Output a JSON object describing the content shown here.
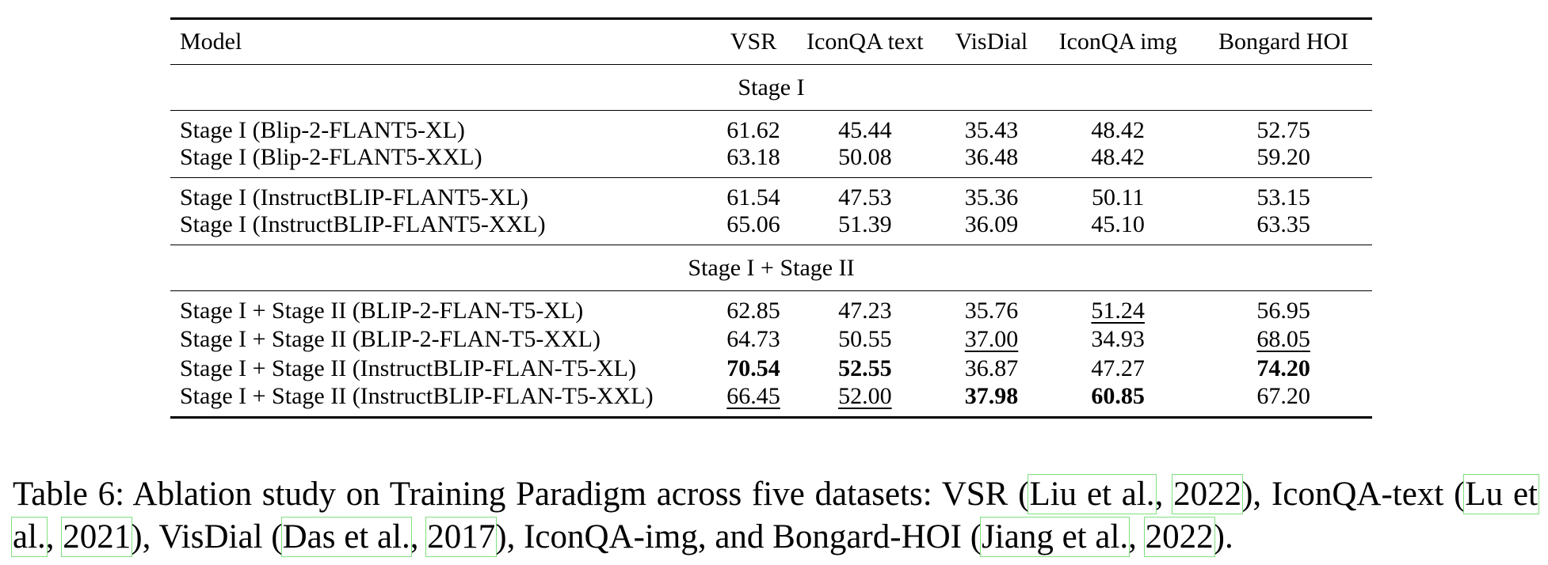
{
  "table": {
    "headers": [
      "Model",
      "VSR",
      "IconQA text",
      "VisDial",
      "IconQA img",
      "Bongard HOI"
    ],
    "sections": [
      {
        "title": "Stage I",
        "groups": [
          [
            {
              "model": "Stage I (Blip-2-FLANT5-XL)",
              "cells": [
                {
                  "v": "61.62"
                },
                {
                  "v": "45.44"
                },
                {
                  "v": "35.43"
                },
                {
                  "v": "48.42"
                },
                {
                  "v": "52.75"
                }
              ]
            },
            {
              "model": "Stage I (Blip-2-FLANT5-XXL)",
              "cells": [
                {
                  "v": "63.18"
                },
                {
                  "v": "50.08"
                },
                {
                  "v": "36.48"
                },
                {
                  "v": "48.42"
                },
                {
                  "v": "59.20"
                }
              ]
            }
          ],
          [
            {
              "model": "Stage I (InstructBLIP-FLANT5-XL)",
              "cells": [
                {
                  "v": "61.54"
                },
                {
                  "v": "47.53"
                },
                {
                  "v": "35.36"
                },
                {
                  "v": "50.11"
                },
                {
                  "v": "53.15"
                }
              ]
            },
            {
              "model": "Stage I (InstructBLIP-FLANT5-XXL)",
              "cells": [
                {
                  "v": "65.06"
                },
                {
                  "v": "51.39"
                },
                {
                  "v": "36.09"
                },
                {
                  "v": "45.10"
                },
                {
                  "v": "63.35"
                }
              ]
            }
          ]
        ]
      },
      {
        "title": "Stage I + Stage II",
        "groups": [
          [
            {
              "model": "Stage I + Stage II (BLIP-2-FLAN-T5-XL)",
              "cells": [
                {
                  "v": "62.85"
                },
                {
                  "v": "47.23"
                },
                {
                  "v": "35.76"
                },
                {
                  "v": "51.24",
                  "s": "u"
                },
                {
                  "v": "56.95"
                }
              ]
            },
            {
              "model": "Stage I + Stage II (BLIP-2-FLAN-T5-XXL)",
              "cells": [
                {
                  "v": "64.73"
                },
                {
                  "v": "50.55"
                },
                {
                  "v": "37.00",
                  "s": "u"
                },
                {
                  "v": "34.93"
                },
                {
                  "v": "68.05",
                  "s": "u"
                }
              ]
            },
            {
              "model": "Stage I + Stage II (InstructBLIP-FLAN-T5-XL)",
              "cells": [
                {
                  "v": "70.54",
                  "s": "b"
                },
                {
                  "v": "52.55",
                  "s": "b"
                },
                {
                  "v": "36.87"
                },
                {
                  "v": "47.27"
                },
                {
                  "v": "74.20",
                  "s": "b"
                }
              ]
            },
            {
              "model": "Stage I + Stage II (InstructBLIP-FLAN-T5-XXL)",
              "cells": [
                {
                  "v": "66.45",
                  "s": "u"
                },
                {
                  "v": "52.00",
                  "s": "u"
                },
                {
                  "v": "37.98",
                  "s": "b"
                },
                {
                  "v": "60.85",
                  "s": "b"
                },
                {
                  "v": "67.20"
                }
              ]
            }
          ]
        ]
      }
    ]
  },
  "caption": {
    "prefix": "Table 6:  Ablation study on Training Paradigm across five datasets: VSR (",
    "c1a": "Liu et al.",
    "s1": ", ",
    "c1b": "2022",
    "t1": "), IconQA-text (",
    "c2a": "Lu et al.",
    "s2": ", ",
    "c2b": "2021",
    "t2": "), VisDial (",
    "c3a": "Das et al.",
    "s3": ", ",
    "c3b": "2017",
    "t3": "), IconQA-img, and Bongard-HOI (",
    "c4a": "Jiang et al.",
    "s4": ", ",
    "c4b": "2022",
    "t4": ")."
  }
}
